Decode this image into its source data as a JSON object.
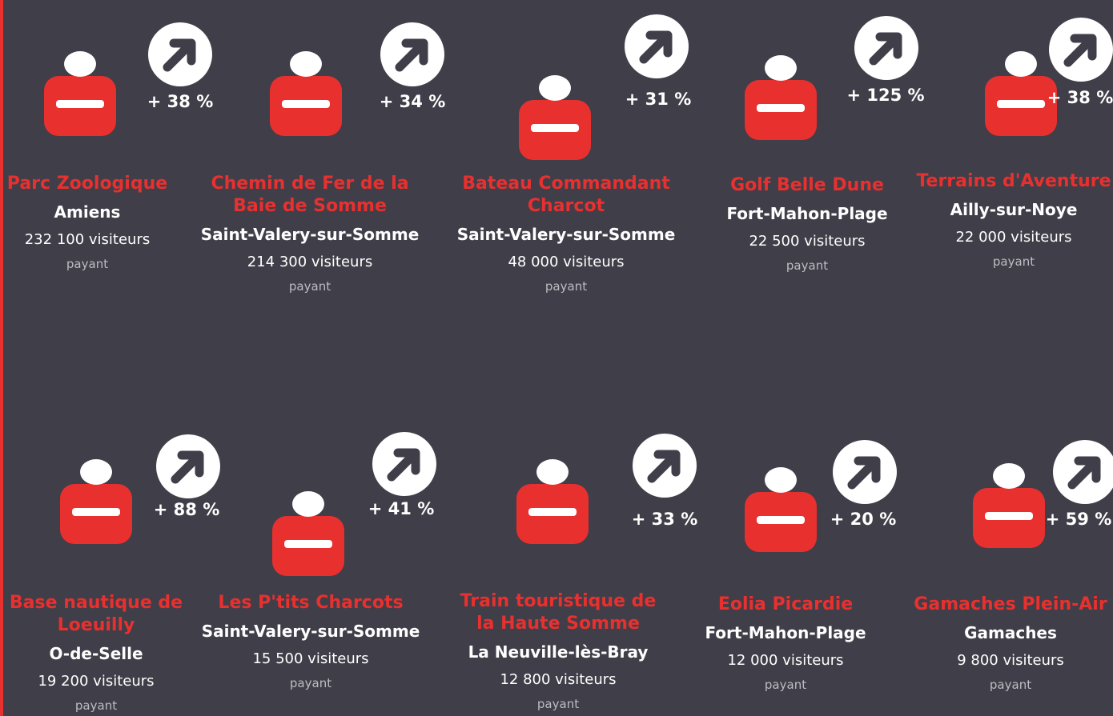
{
  "items": [
    {
      "name": "Parc Zoologique",
      "place": "Amiens",
      "visitors": "232 100 visiteurs",
      "note": "payant",
      "growth": "+ 38 %"
    },
    {
      "name": "Chemin de Fer de la Baie de Somme",
      "place": "Saint-Valery-sur-Somme",
      "visitors": "214 300 visiteurs",
      "note": "payant",
      "growth": "+ 34 %"
    },
    {
      "name": "Bateau Commandant Charcot",
      "place": "Saint-Valery-sur-Somme",
      "visitors": "48 000 visiteurs",
      "note": "payant",
      "growth": "+ 31 %"
    },
    {
      "name": "Golf Belle Dune",
      "place": "Fort-Mahon-Plage",
      "visitors": "22 500 visiteurs",
      "note": "payant",
      "growth": "+ 125 %"
    },
    {
      "name": "Terrains d'Aventure",
      "place": "Ailly-sur-Noye",
      "visitors": "22 000 visiteurs",
      "note": "payant",
      "growth": "+ 38 %"
    },
    {
      "name": "Base nautique de Loeuilly",
      "place": "O-de-Selle",
      "visitors": "19 200 visiteurs",
      "note": "payant",
      "growth": "+ 88 %"
    },
    {
      "name": "Les P'tits Charcots",
      "place": "Saint-Valery-sur-Somme",
      "visitors": "15 500 visiteurs",
      "note": "payant",
      "growth": "+ 41 %"
    },
    {
      "name": "Train touristique de la Haute Somme",
      "place": "La Neuville-lès-Bray",
      "visitors": "12 800 visiteurs",
      "note": "payant",
      "growth": "+ 33 %"
    },
    {
      "name": "Eolia Picardie",
      "place": "Fort-Mahon-Plage",
      "visitors": "12 000 visiteurs",
      "note": "payant",
      "growth": "+ 20 %"
    },
    {
      "name": "Gamaches Plein-Air",
      "place": "Gamaches",
      "visitors": "9 800 visiteurs",
      "note": "payant",
      "growth": "+ 59 %"
    }
  ]
}
